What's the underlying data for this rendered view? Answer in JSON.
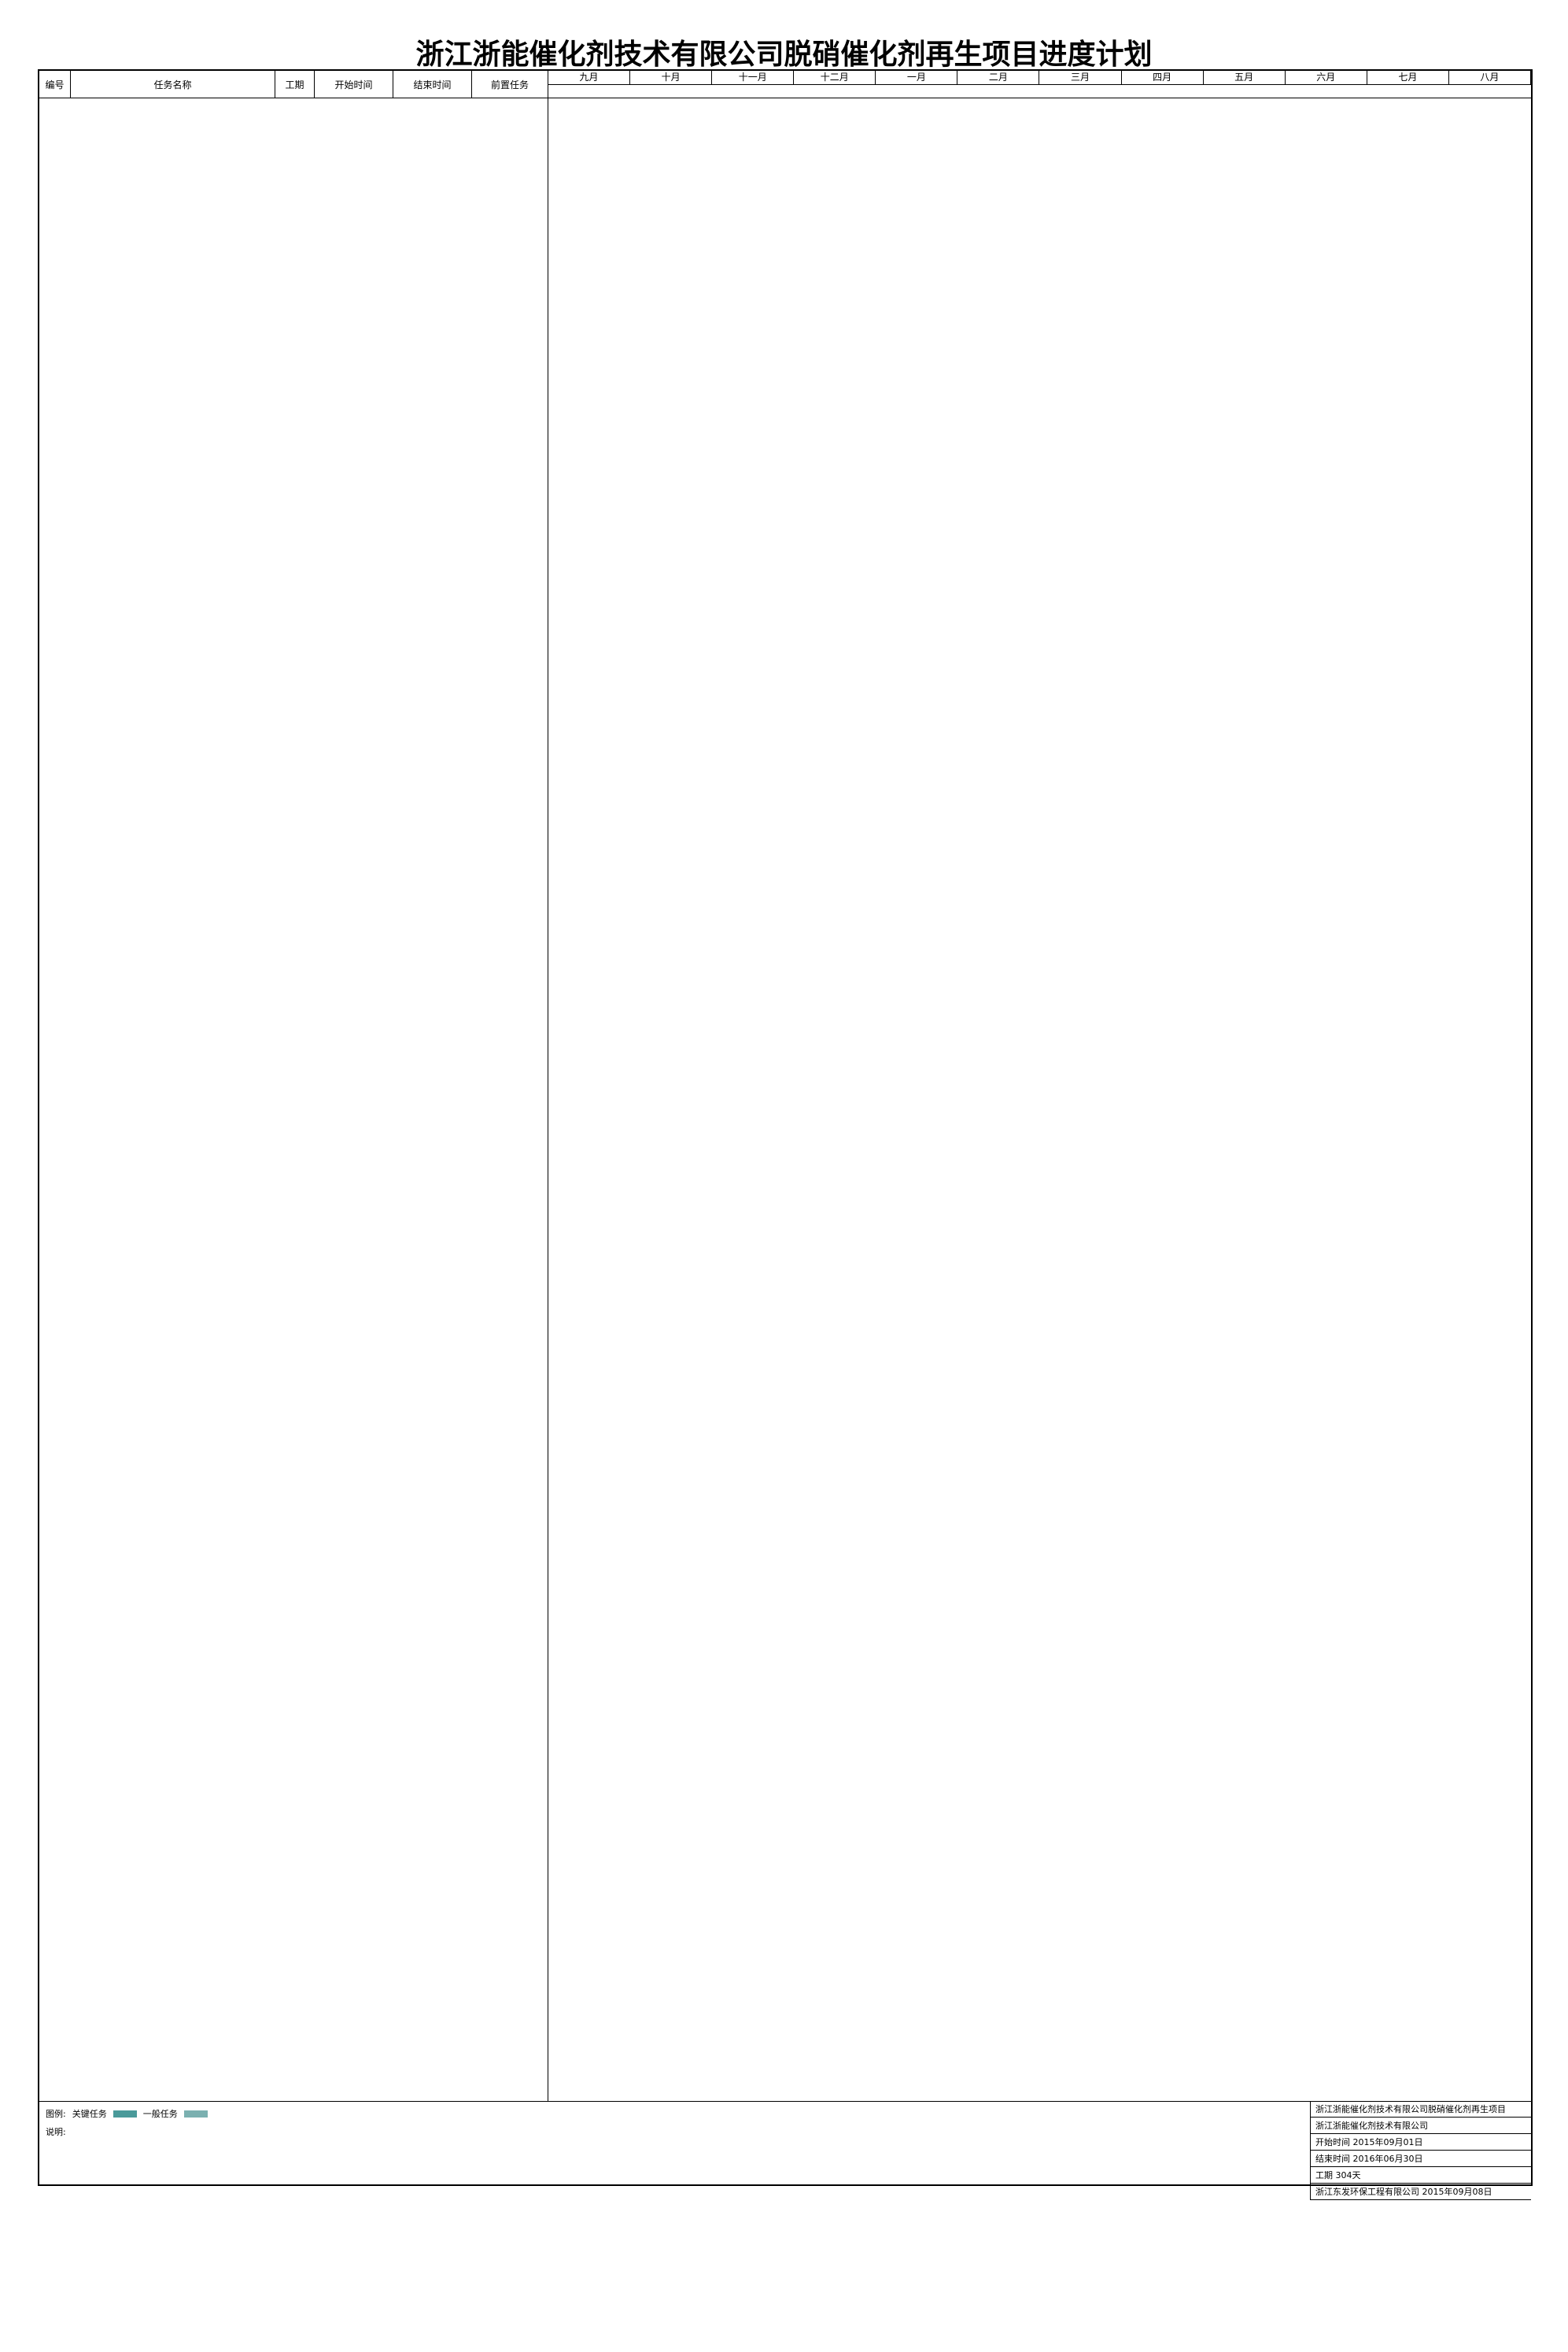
{
  "title": "浙江浙能催化剂技术有限公司脱硝催化剂再生项目进度计划",
  "table_header": {
    "col_id": "编号",
    "col_name": "任务名称",
    "col_duration": "工期",
    "col_start": "开始时间",
    "col_end": "结束时间",
    "col_pred": "前置任务"
  },
  "months": [
    "九月",
    "十月",
    "十一月",
    "十二月",
    "一月",
    "二月",
    "三月",
    "四月",
    "五月",
    "六月",
    "七月",
    "八月"
  ],
  "legend": {
    "label": "图例:",
    "critical": "关键任务",
    "normal": "一般任务"
  },
  "notes": [
    "说明:"
  ],
  "info": {
    "company_line1": "浙江浙能催化剂技术有限公司脱硝催化剂再生项目",
    "company_line2": "浙江浙能催化剂技术有限公司",
    "start_label": "开始时间",
    "start_date": "2015年09月01日",
    "end_label": "结束时间",
    "end_date": "2016年06月30日",
    "duration_label": "工期",
    "duration": "304天",
    "footer_company": "浙江东发环保工程有限公司",
    "footer_date": "2015年09月08日"
  }
}
